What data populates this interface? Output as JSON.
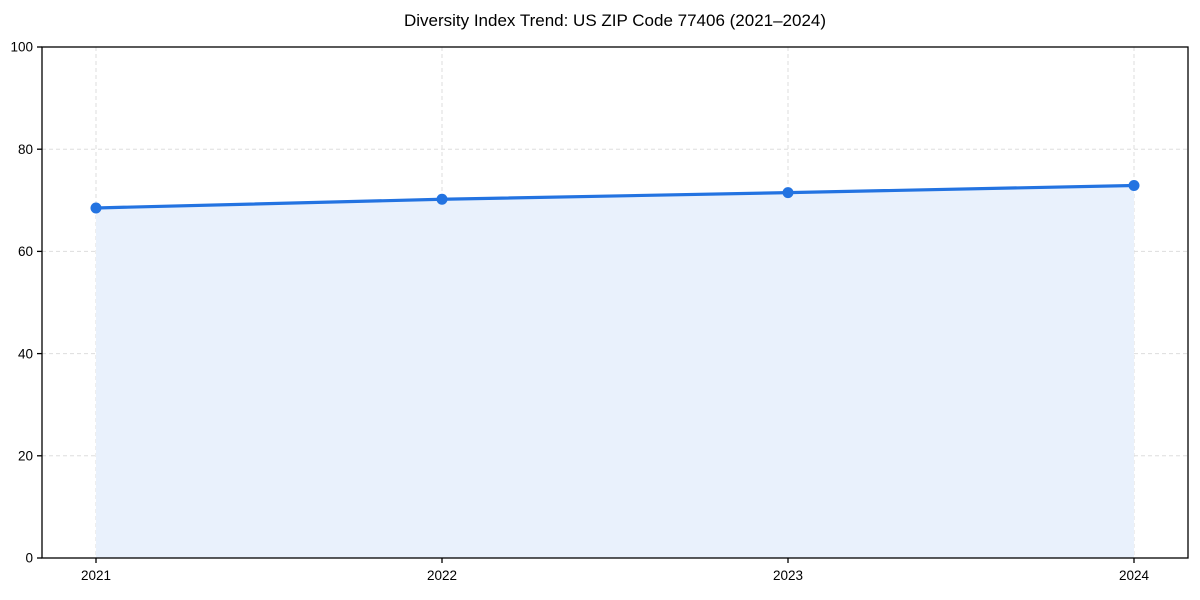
{
  "chart_data": {
    "type": "area",
    "title": "Diversity Index Trend: US ZIP Code 77406 (2021–2024)",
    "categories": [
      "2021",
      "2022",
      "2023",
      "2024"
    ],
    "values": [
      68.5,
      70.2,
      71.5,
      72.9
    ],
    "series_name": "Diversity Index",
    "xlabel": "",
    "ylabel": "",
    "ylim": [
      0,
      100
    ],
    "yticks": [
      0,
      20,
      40,
      60,
      80,
      100
    ],
    "grid": "dashed",
    "legend": "none",
    "colors": {
      "line": "#2373e1",
      "marker": "#2373e1",
      "fill": "#e9f1fc",
      "grid": "#dddddd",
      "axis": "#000000",
      "text": "#000000"
    }
  }
}
